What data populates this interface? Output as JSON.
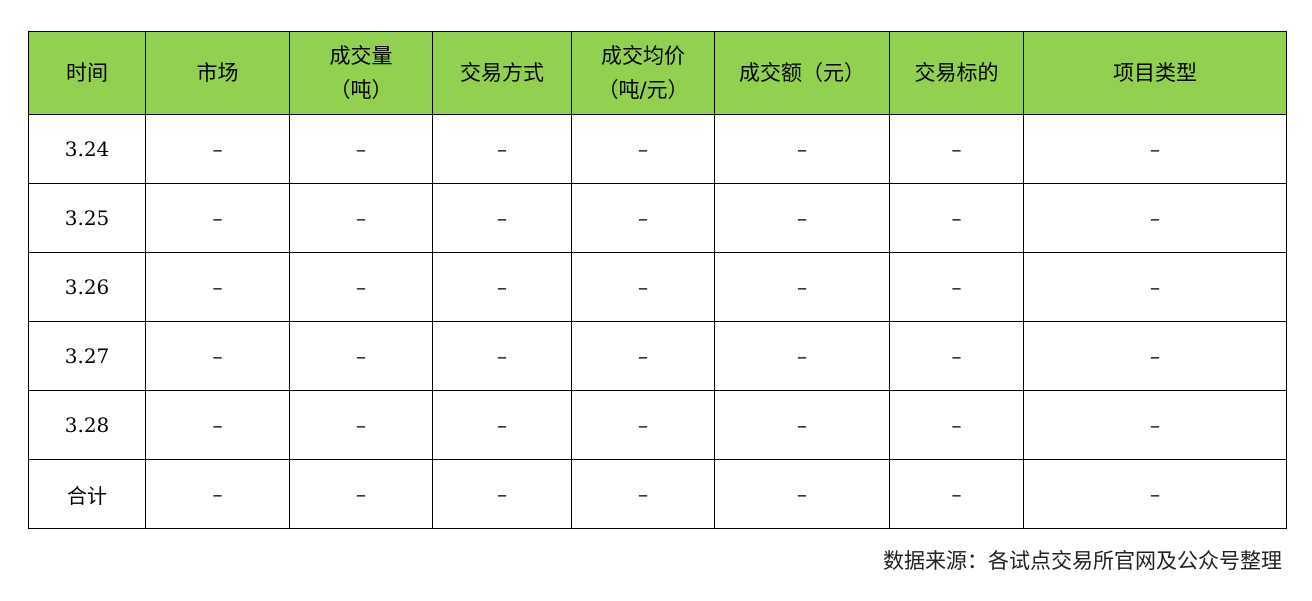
{
  "header_color": "#92d050",
  "columns": [
    "时间",
    "市场",
    "成交量\n（吨）",
    "交易方式",
    "成交均价\n（吨/元）",
    "成交额（元）",
    "交易标的",
    "项目类型"
  ],
  "rows": [
    [
      "3.24",
      "–",
      "–",
      "–",
      "–",
      "–",
      "–",
      "–"
    ],
    [
      "3.25",
      "–",
      "–",
      "–",
      "–",
      "–",
      "–",
      "–"
    ],
    [
      "3.26",
      "–",
      "–",
      "–",
      "–",
      "–",
      "–",
      "–"
    ],
    [
      "3.27",
      "–",
      "–",
      "–",
      "–",
      "–",
      "–",
      "–"
    ],
    [
      "3.28",
      "–",
      "–",
      "–",
      "–",
      "–",
      "–",
      "–"
    ],
    [
      "合计",
      "–",
      "–",
      "–",
      "–",
      "–",
      "–",
      "–"
    ]
  ],
  "source": "数据来源：各试点交易所官网及公众号整理"
}
